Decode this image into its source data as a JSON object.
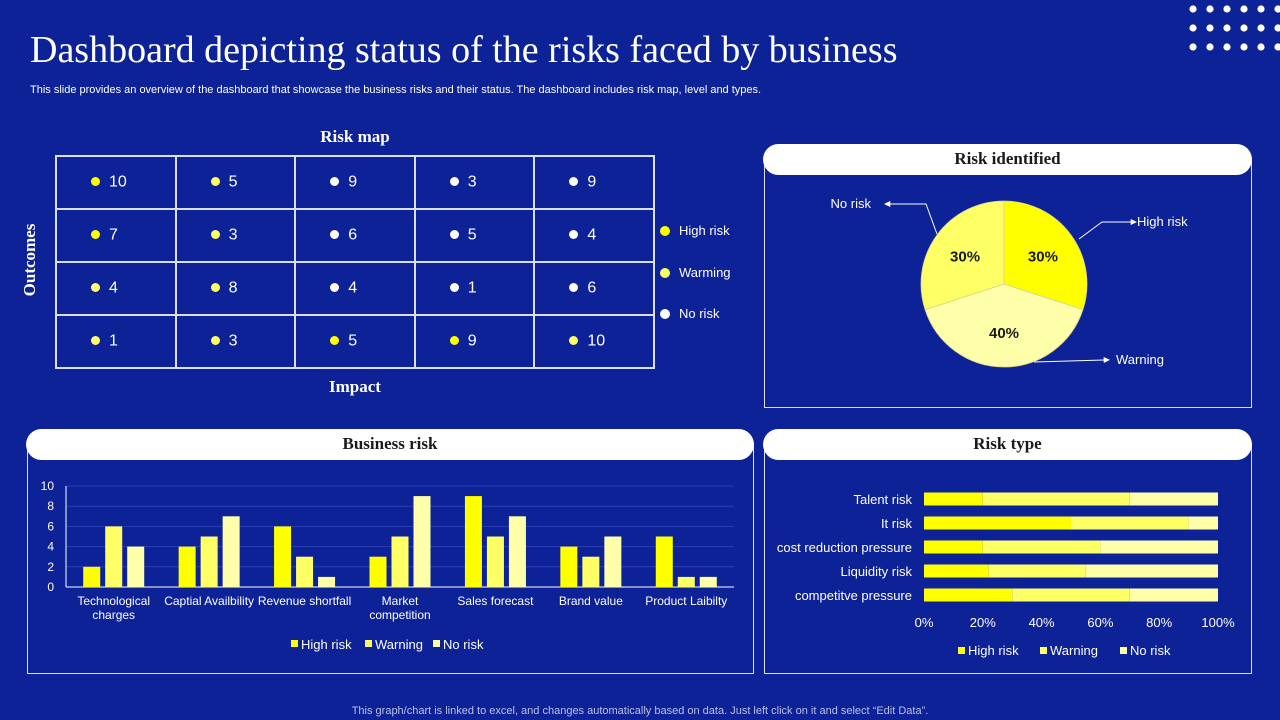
{
  "title": "Dashboard depicting status of the risks faced by business",
  "subtitle": "This slide provides an overview of the dashboard that showcase the business risks and their status. The dashboard includes risk map, level and types.",
  "footer": "This graph/chart is linked to excel, and changes automatically based on data. Just left click on it and select “Edit Data”.",
  "colors": {
    "background": "#0d2296",
    "high_risk": "#ffff00",
    "warning": "#ffff66",
    "no_risk": "#ffffaa",
    "white": "#ffffff"
  },
  "risk_map": {
    "title": "Risk map",
    "y_label": "Outcomes",
    "x_label": "Impact",
    "rows": [
      [
        {
          "value": "10",
          "level": "high"
        },
        {
          "value": "5",
          "level": "warning"
        },
        {
          "value": "9",
          "level": "none"
        },
        {
          "value": "3",
          "level": "none"
        },
        {
          "value": "9",
          "level": "none"
        }
      ],
      [
        {
          "value": "7",
          "level": "high"
        },
        {
          "value": "3",
          "level": "warning"
        },
        {
          "value": "6",
          "level": "none"
        },
        {
          "value": "5",
          "level": "none"
        },
        {
          "value": "4",
          "level": "none"
        }
      ],
      [
        {
          "value": "4",
          "level": "warning"
        },
        {
          "value": "8",
          "level": "warning"
        },
        {
          "value": "4",
          "level": "none"
        },
        {
          "value": "1",
          "level": "none"
        },
        {
          "value": "6",
          "level": "none"
        }
      ],
      [
        {
          "value": "1",
          "level": "warning"
        },
        {
          "value": "3",
          "level": "warning"
        },
        {
          "value": "5",
          "level": "high"
        },
        {
          "value": "9",
          "level": "high"
        },
        {
          "value": "10",
          "level": "warning"
        }
      ]
    ],
    "legend": [
      {
        "label": "High risk",
        "level": "high"
      },
      {
        "label": "Warming",
        "level": "warning"
      },
      {
        "label": "No risk",
        "level": "none"
      }
    ]
  },
  "chart_data": [
    {
      "id": "risk_identified",
      "type": "pie",
      "title": "Risk identified",
      "slices": [
        {
          "label": "High risk",
          "value": 30,
          "display": "30%"
        },
        {
          "label": "Warning",
          "value": 40,
          "display": "40%"
        },
        {
          "label": "No risk",
          "value": 30,
          "display": "30%"
        }
      ]
    },
    {
      "id": "business_risk",
      "type": "bar",
      "title": "Business risk",
      "categories": [
        "Technological charges",
        "Captial Availbility",
        "Revenue shortfall",
        "Market competition",
        "Sales forecast",
        "Brand value",
        "Product Laibilty"
      ],
      "category_lines": [
        [
          "Technological",
          "charges"
        ],
        [
          "Captial Availbility"
        ],
        [
          "Revenue shortfall"
        ],
        [
          "Market",
          "competition"
        ],
        [
          "Sales forecast"
        ],
        [
          "Brand value"
        ],
        [
          "Product Laibilty"
        ]
      ],
      "series": [
        {
          "name": "High risk",
          "values": [
            2,
            4,
            6,
            3,
            9,
            4,
            5
          ]
        },
        {
          "name": "Warning",
          "values": [
            6,
            5,
            3,
            5,
            5,
            3,
            1
          ]
        },
        {
          "name": "No risk",
          "values": [
            4,
            7,
            1,
            9,
            7,
            5,
            1
          ]
        }
      ],
      "ylim": [
        0,
        10
      ],
      "yticks": [
        "0",
        "2",
        "4",
        "6",
        "8",
        "10"
      ],
      "legend_position": "bottom"
    },
    {
      "id": "risk_type",
      "type": "bar",
      "orientation": "horizontal-stacked-100",
      "title": "Risk type",
      "categories": [
        "Talent risk",
        "It risk",
        "cost reduction pressure",
        "Liquidity risk",
        "competitve pressure"
      ],
      "series": [
        {
          "name": "High risk",
          "values": [
            20,
            50,
            20,
            22,
            30
          ]
        },
        {
          "name": "Warning",
          "values": [
            50,
            40,
            40,
            33,
            40
          ]
        },
        {
          "name": "No risk",
          "values": [
            30,
            10,
            40,
            45,
            30
          ]
        }
      ],
      "xticks": [
        "0%",
        "20%",
        "40%",
        "60%",
        "80%",
        "100%"
      ],
      "legend_position": "bottom"
    }
  ]
}
